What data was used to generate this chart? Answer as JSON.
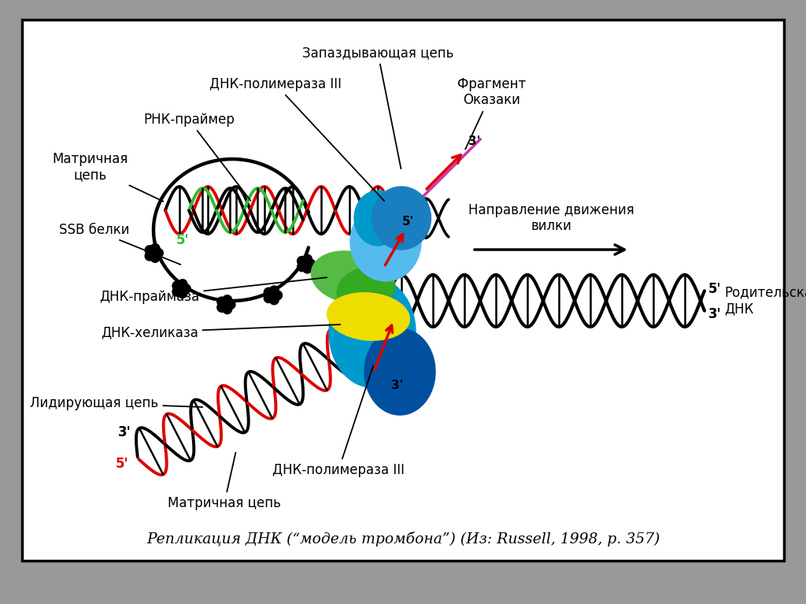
{
  "background_outer": "#999999",
  "background_inner": "#ffffff",
  "title_text": "Репликация ДНК (“модель тромбона”) (Из: Russell, 1998, p. 357)",
  "labels": {
    "zapazdyvayushchaya": "Запаздывающая цепь",
    "dnk_polimerase_top": "ДНК-полимераза III",
    "rnk_primer": "РНК-праймер",
    "matrichnaya_top": "Матричная\nцепь",
    "ssb": "SSB белки",
    "dnk_priymaza": "ДНК-праймаза",
    "dnk_helikaza": "ДНК-хеликаза",
    "lidiruyushchaya": "Лидирующая цепь",
    "fragment_okazaki": "Фрагмент\nОказаки",
    "napravlenie": "Направление движения\nвилки",
    "roditelskaya": "Родительская\nДНК",
    "matrichnaya_bot": "Матричная цепь",
    "dnk_polimerase_bot": "ДНК-полимераза III"
  },
  "colors": {
    "black": "#000000",
    "red": "#dd0000",
    "green": "#22aa22",
    "blue": "#1a7fbf",
    "dark_blue": "#0050a0",
    "light_blue": "#55bbee",
    "cyan_blue": "#0099cc",
    "green2": "#33bb33",
    "yellow": "#eedd00",
    "magenta": "#cc33aa",
    "purple": "#9944bb",
    "white": "#ffffff"
  }
}
